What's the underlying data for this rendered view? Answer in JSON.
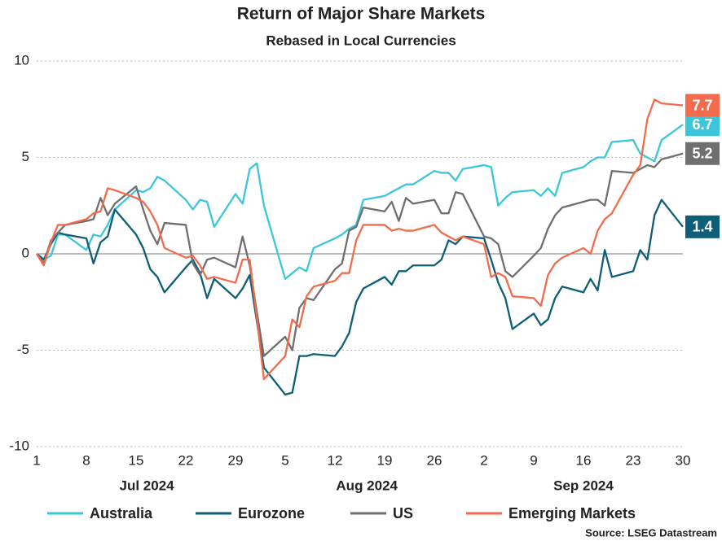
{
  "chart_data": {
    "type": "line",
    "title": "Return of Major Share Markets",
    "subtitle": "Rebased in Local Currencies",
    "source": "Source: LSEG Datastream",
    "x": [
      "2024-07-01",
      "2024-07-02",
      "2024-07-03",
      "2024-07-04",
      "2024-07-05",
      "2024-07-08",
      "2024-07-09",
      "2024-07-10",
      "2024-07-11",
      "2024-07-12",
      "2024-07-15",
      "2024-07-16",
      "2024-07-17",
      "2024-07-18",
      "2024-07-19",
      "2024-07-22",
      "2024-07-23",
      "2024-07-24",
      "2024-07-25",
      "2024-07-26",
      "2024-07-29",
      "2024-07-30",
      "2024-07-31",
      "2024-08-01",
      "2024-08-02",
      "2024-08-05",
      "2024-08-06",
      "2024-08-07",
      "2024-08-08",
      "2024-08-09",
      "2024-08-12",
      "2024-08-13",
      "2024-08-14",
      "2024-08-15",
      "2024-08-16",
      "2024-08-19",
      "2024-08-20",
      "2024-08-21",
      "2024-08-22",
      "2024-08-23",
      "2024-08-26",
      "2024-08-27",
      "2024-08-28",
      "2024-08-29",
      "2024-08-30",
      "2024-09-02",
      "2024-09-03",
      "2024-09-04",
      "2024-09-05",
      "2024-09-06",
      "2024-09-09",
      "2024-09-10",
      "2024-09-11",
      "2024-09-12",
      "2024-09-13",
      "2024-09-16",
      "2024-09-17",
      "2024-09-18",
      "2024-09-19",
      "2024-09-20",
      "2024-09-23",
      "2024-09-24",
      "2024-09-25",
      "2024-09-26",
      "2024-09-27",
      "2024-09-30"
    ],
    "xlim": [
      "2024-07-01",
      "2024-09-30"
    ],
    "xticks": [
      {
        "value": "2024-07-01",
        "label": "1"
      },
      {
        "value": "2024-07-08",
        "label": "8"
      },
      {
        "value": "2024-07-15",
        "label": "15"
      },
      {
        "value": "2024-07-22",
        "label": "22"
      },
      {
        "value": "2024-07-29",
        "label": "29"
      },
      {
        "value": "2024-08-05",
        "label": "5"
      },
      {
        "value": "2024-08-12",
        "label": "12"
      },
      {
        "value": "2024-08-19",
        "label": "19"
      },
      {
        "value": "2024-08-26",
        "label": "26"
      },
      {
        "value": "2024-09-02",
        "label": "2"
      },
      {
        "value": "2024-09-09",
        "label": "9"
      },
      {
        "value": "2024-09-16",
        "label": "16"
      },
      {
        "value": "2024-09-23",
        "label": "23"
      },
      {
        "value": "2024-09-30",
        "label": "30"
      }
    ],
    "months": [
      {
        "value": "2024-07",
        "label": "Jul 2024"
      },
      {
        "value": "2024-08",
        "label": "Aug 2024"
      },
      {
        "value": "2024-09",
        "label": "Sep 2024"
      }
    ],
    "ylim": [
      -10,
      10
    ],
    "yticks": [
      -10,
      -5,
      0,
      5,
      10
    ],
    "grid": true,
    "series": [
      {
        "name": "Australia",
        "color": "#3cc6da",
        "values": [
          0,
          -0.3,
          -0.1,
          1.0,
          1.0,
          0.2,
          1.0,
          0.9,
          1.5,
          2.3,
          3.3,
          3.2,
          3.4,
          4.0,
          3.8,
          2.8,
          2.3,
          2.8,
          2.7,
          1.4,
          3.1,
          2.6,
          4.4,
          4.7,
          2.5,
          -1.3,
          -1.0,
          -0.7,
          -0.9,
          0.3,
          0.8,
          1.0,
          1.3,
          1.5,
          2.8,
          3.0,
          3.2,
          3.4,
          3.6,
          3.6,
          4.3,
          4.2,
          4.2,
          3.8,
          4.4,
          4.6,
          4.5,
          2.5,
          2.9,
          3.2,
          3.3,
          3.0,
          3.4,
          3.0,
          4.2,
          4.5,
          4.8,
          5.0,
          5.0,
          5.8,
          5.9,
          5.2,
          5.0,
          4.8,
          5.9,
          6.7
        ]
      },
      {
        "name": "Eurozone",
        "color": "#0f5e78",
        "values": [
          0,
          -0.3,
          0.5,
          1.1,
          1.0,
          0.8,
          -0.5,
          0.6,
          0.9,
          2.3,
          1.0,
          0.3,
          -0.8,
          -1.2,
          -2.0,
          -0.7,
          -0.3,
          -1.0,
          -2.3,
          -1.3,
          -2.3,
          -1.8,
          -1.1,
          -3.5,
          -5.9,
          -7.3,
          -7.2,
          -5.3,
          -5.3,
          -5.2,
          -5.3,
          -4.8,
          -4.1,
          -2.5,
          -1.8,
          -1.2,
          -1.6,
          -0.9,
          -0.9,
          -0.6,
          -0.6,
          -0.3,
          0.7,
          0.5,
          0.9,
          0.8,
          -0.3,
          -1.5,
          -2.3,
          -3.9,
          -3.1,
          -3.7,
          -3.4,
          -2.3,
          -1.7,
          -2.0,
          -1.3,
          -1.9,
          0.2,
          -1.2,
          -0.9,
          0.2,
          -0.3,
          2.0,
          2.8,
          1.4
        ]
      },
      {
        "name": "US",
        "color": "#6f6f6f",
        "values": [
          0,
          -0.5,
          0.7,
          1.1,
          1.5,
          1.7,
          1.8,
          2.9,
          2.0,
          2.6,
          3.5,
          2.3,
          1.2,
          0.5,
          1.6,
          1.5,
          -0.5,
          -1.1,
          -0.3,
          -0.2,
          -0.7,
          0.9,
          -0.6,
          -3.0,
          -5.3,
          -4.3,
          -5.0,
          -2.8,
          -2.3,
          -2.4,
          -0.8,
          -0.5,
          1.2,
          1.4,
          2.4,
          2.2,
          2.7,
          1.7,
          2.9,
          2.6,
          2.8,
          2.1,
          2.1,
          3.2,
          3.1,
          0.9,
          0.8,
          0.5,
          -0.9,
          -1.2,
          -0.1,
          0.3,
          1.3,
          2.0,
          2.4,
          2.7,
          2.8,
          2.8,
          2.5,
          4.3,
          4.2,
          4.4,
          4.6,
          4.5,
          4.9,
          5.2
        ]
      },
      {
        "name": "Emerging Markets",
        "color": "#f26b4c",
        "values": [
          0,
          -0.6,
          0.6,
          1.5,
          1.5,
          1.8,
          2.1,
          2.2,
          3.4,
          3.3,
          2.9,
          2.7,
          2.2,
          1.5,
          0.3,
          -0.2,
          -0.1,
          -0.6,
          -1.3,
          -1.2,
          -1.5,
          -0.3,
          -0.3,
          -3.3,
          -6.5,
          -5.3,
          -3.4,
          -3.8,
          -2.2,
          -1.7,
          -1.4,
          -1.0,
          -1.0,
          0.7,
          1.5,
          1.5,
          1.2,
          1.3,
          1.2,
          1.2,
          1.5,
          1.1,
          0.9,
          0.7,
          0.9,
          0.5,
          -1.2,
          -1.0,
          -1.2,
          -2.2,
          -2.3,
          -2.7,
          -1.1,
          -0.5,
          -0.2,
          0.3,
          0.0,
          1.2,
          1.8,
          2.1,
          4.1,
          4.6,
          7.0,
          8.0,
          7.8,
          7.7
        ]
      }
    ]
  }
}
